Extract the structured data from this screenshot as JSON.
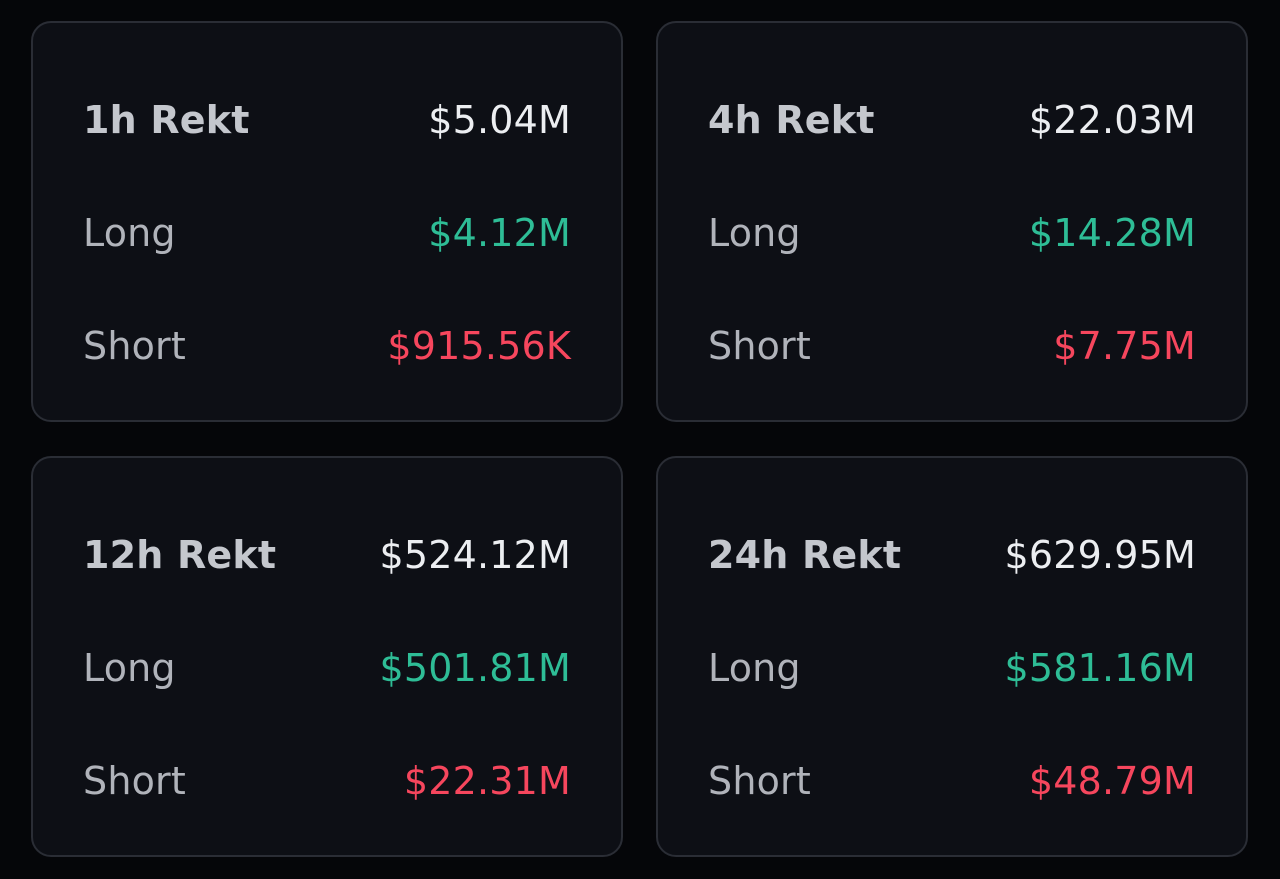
{
  "colors": {
    "background": "#050609",
    "card": "#0d0f15",
    "long": "#2ebd96",
    "short": "#f6465d",
    "total": "#eceef1"
  },
  "cards": [
    {
      "title": "1h Rekt",
      "total": "$5.04M",
      "long_label": "Long",
      "long_value": "$4.12M",
      "short_label": "Short",
      "short_value": "$915.56K"
    },
    {
      "title": "4h Rekt",
      "total": "$22.03M",
      "long_label": "Long",
      "long_value": "$14.28M",
      "short_label": "Short",
      "short_value": "$7.75M"
    },
    {
      "title": "12h Rekt",
      "total": "$524.12M",
      "long_label": "Long",
      "long_value": "$501.81M",
      "short_label": "Short",
      "short_value": "$22.31M"
    },
    {
      "title": "24h Rekt",
      "total": "$629.95M",
      "long_label": "Long",
      "long_value": "$581.16M",
      "short_label": "Short",
      "short_value": "$48.79M"
    }
  ]
}
